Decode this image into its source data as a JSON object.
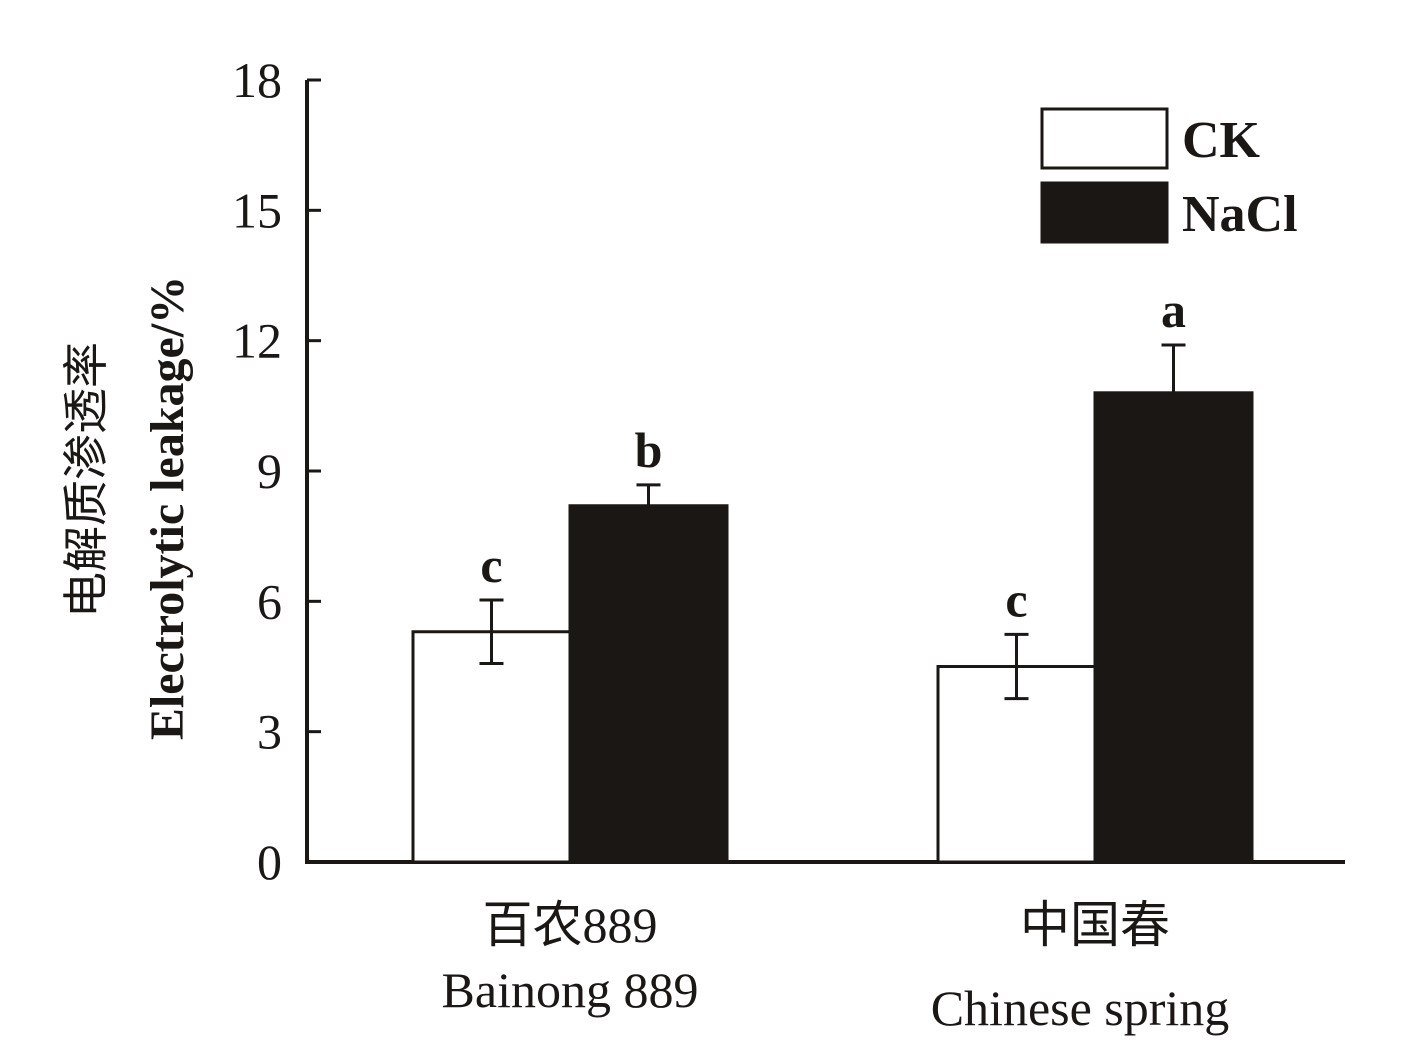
{
  "chart_data": {
    "type": "bar",
    "title": "",
    "ylabel_cn": "电解质渗透率",
    "ylabel": "Electrolytic leakage/%",
    "xlabel": "",
    "ylim": [
      0,
      18
    ],
    "yticks": [
      0,
      3,
      6,
      9,
      12,
      15,
      18
    ],
    "categories": [
      {
        "cn": "百农889",
        "en": "Bainong 889"
      },
      {
        "cn": "中国春",
        "en": "Chinese spring"
      }
    ],
    "series": [
      {
        "name": "CK",
        "color": "#ffffff",
        "values": [
          5.3,
          4.5
        ],
        "errors": [
          0.73,
          0.74
        ],
        "letters": [
          "c",
          "c"
        ]
      },
      {
        "name": "NaCl",
        "color": "#1a1715",
        "values": [
          8.2,
          10.8
        ],
        "errors": [
          0.48,
          1.1
        ],
        "letters": [
          "b",
          "a"
        ]
      }
    ],
    "legend_position": "top-right",
    "grid": false
  }
}
